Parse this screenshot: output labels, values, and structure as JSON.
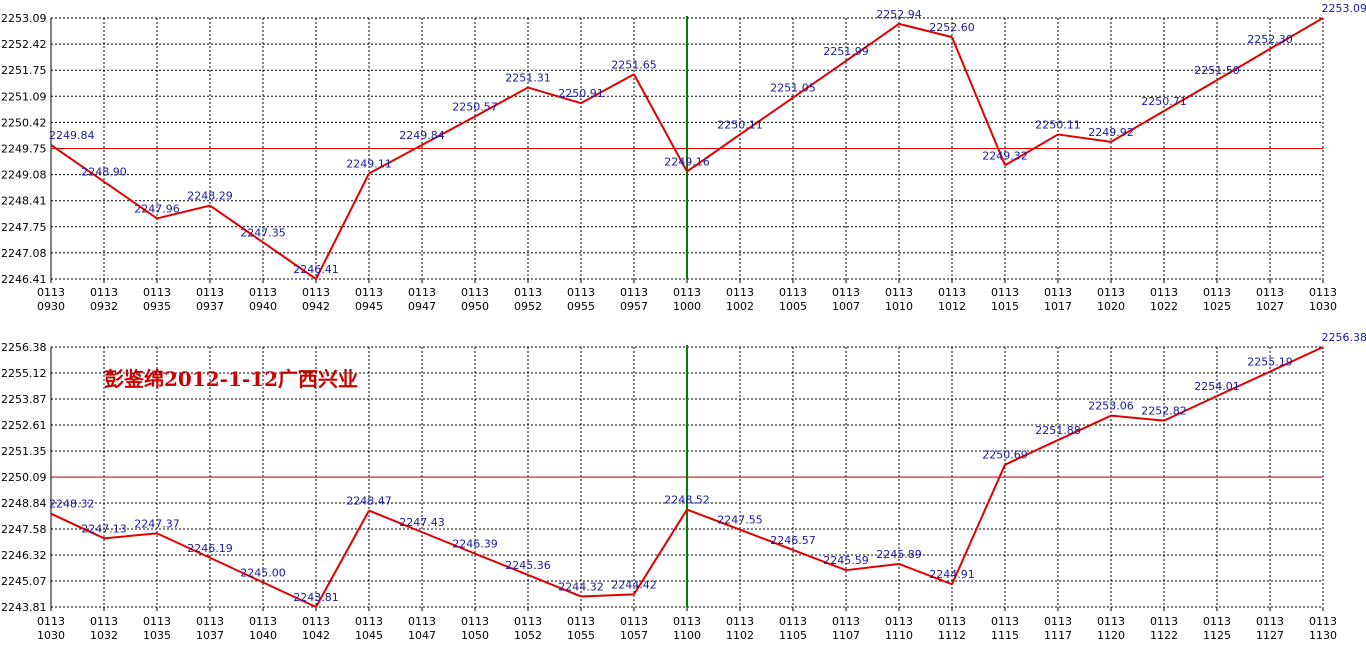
{
  "colors": {
    "background": "#ffffff",
    "line": "#e00000",
    "reference": "#e00000",
    "grid": "#000000",
    "divider": "#008000",
    "label": "#1a1aa0",
    "note": "#cc0000"
  },
  "annotation": "彭鉴绵2012-1-12广西兴业",
  "chart_data": [
    {
      "type": "line",
      "grid": true,
      "reference_line": 2249.75,
      "divider_after": "0113 1000",
      "ylim": [
        2246.41,
        2253.09
      ],
      "yticks": [
        "2253.09",
        "2252.42",
        "2251.75",
        "2251.09",
        "2250.42",
        "2249.75",
        "2249.08",
        "2248.41",
        "2247.75",
        "2247.08",
        "2246.41"
      ],
      "xtick_dates": [
        "0113",
        "0113",
        "0113",
        "0113",
        "0113",
        "0113",
        "0113",
        "0113",
        "0113",
        "0113",
        "0113",
        "0113",
        "0113",
        "0113",
        "0113",
        "0113",
        "0113",
        "0113",
        "0113",
        "0113",
        "0113",
        "0113",
        "0113",
        "0113",
        "0113"
      ],
      "xtick_times": [
        "0930",
        "0932",
        "0935",
        "0937",
        "0940",
        "0942",
        "0945",
        "0947",
        "0950",
        "0952",
        "0955",
        "0957",
        "1000",
        "1002",
        "1005",
        "1007",
        "1010",
        "1012",
        "1015",
        "1017",
        "1020",
        "1022",
        "1025",
        "1027",
        "1030"
      ],
      "values": [
        2249.84,
        2248.9,
        2247.96,
        2248.29,
        2247.35,
        2246.41,
        2249.11,
        2249.84,
        2250.57,
        2251.31,
        2250.91,
        2251.65,
        2249.16,
        2250.11,
        2251.05,
        2251.99,
        2252.94,
        2252.6,
        2249.32,
        2250.11,
        2249.92,
        2250.71,
        2251.5,
        2252.3,
        2253.09
      ],
      "value_labels": [
        "2249.84",
        "2248.90",
        "2247.96",
        "2248.29",
        "2247.35",
        "2246.41",
        "2249.11",
        "2249.84",
        "2250.57",
        "2251.31",
        "2250.91",
        "2251.65",
        "2249.16",
        "2250.11",
        "2251.05",
        "2251.99",
        "2252.94",
        "2252.60",
        "2249.32",
        "2250.11",
        "2249.92",
        "2250.71",
        "2251.50",
        "2252.30",
        "2253.09"
      ]
    },
    {
      "type": "line",
      "grid": true,
      "reference_line": 2250.09,
      "divider_after": "0113 1100",
      "ylim": [
        2243.81,
        2256.38
      ],
      "yticks": [
        "2256.38",
        "2255.12",
        "2253.87",
        "2252.61",
        "2251.35",
        "2250.09",
        "2248.84",
        "2247.58",
        "2246.32",
        "2245.07",
        "2243.81"
      ],
      "xtick_dates": [
        "0113",
        "0113",
        "0113",
        "0113",
        "0113",
        "0113",
        "0113",
        "0113",
        "0113",
        "0113",
        "0113",
        "0113",
        "0113",
        "0113",
        "0113",
        "0113",
        "0113",
        "0113",
        "0113",
        "0113",
        "0113",
        "0113",
        "0113",
        "0113",
        "0113"
      ],
      "xtick_times": [
        "1030",
        "1032",
        "1035",
        "1037",
        "1040",
        "1042",
        "1045",
        "1047",
        "1050",
        "1052",
        "1055",
        "1057",
        "1100",
        "1102",
        "1105",
        "1107",
        "1110",
        "1112",
        "1115",
        "1117",
        "1120",
        "1122",
        "1125",
        "1127",
        "1130"
      ],
      "values": [
        2248.32,
        2247.13,
        2247.37,
        2246.19,
        2245.0,
        2243.81,
        2248.47,
        2247.43,
        2246.39,
        2245.36,
        2244.32,
        2244.42,
        2248.52,
        2247.55,
        2246.57,
        2245.59,
        2245.89,
        2244.91,
        2250.69,
        2251.88,
        2253.06,
        2252.82,
        2254.01,
        2255.19,
        2256.38
      ],
      "value_labels": [
        "2248.32",
        "2247.13",
        "2247.37",
        "2246.19",
        "2245.00",
        "2243.81",
        "2248.47",
        "2247.43",
        "2246.39",
        "2245.36",
        "2244.32",
        "2244.42",
        "2248.52",
        "2247.55",
        "2246.57",
        "2245.59",
        "2245.89",
        "2244.91",
        "2250.69",
        "2251.88",
        "2253.06",
        "2252.82",
        "2254.01",
        "2255.19",
        "2256.38"
      ]
    }
  ]
}
